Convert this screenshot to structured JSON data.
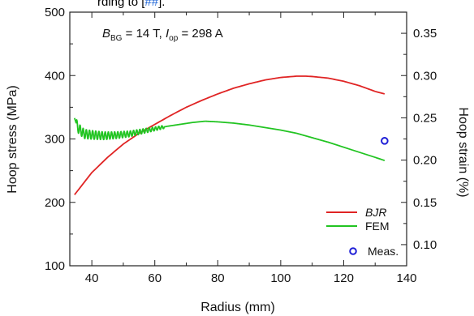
{
  "top_caption": {
    "prefix": "rding to [",
    "link": "##",
    "suffix": "]."
  },
  "chart_data": {
    "type": "line",
    "annotation": {
      "b_symbol": "B",
      "b_sub": "BG",
      "b_rest": " = 14 T, ",
      "i_symbol": "I",
      "i_sub": "op",
      "i_rest": " = 298 A"
    },
    "xlabel": "Radius (mm)",
    "ylabel": "Hoop stress (MPa)",
    "y2label": "Hoop strain (%)",
    "xlim": [
      33,
      140
    ],
    "ylim": [
      100,
      500
    ],
    "y2lim": [
      0.075,
      0.375
    ],
    "xticks": [
      40,
      60,
      80,
      100,
      120,
      140
    ],
    "yticks": [
      100,
      200,
      300,
      400,
      500
    ],
    "y2ticks": [
      0.1,
      0.15,
      0.2,
      0.25,
      0.3,
      0.35
    ],
    "grid": false,
    "legend_position": "bottom-right",
    "series": [
      {
        "name": "BJR",
        "color": "#e02424",
        "style": "line",
        "x": [
          34.5,
          40,
          45,
          50,
          55,
          60,
          65,
          70,
          75,
          80,
          85,
          90,
          95,
          100,
          105,
          108,
          110,
          115,
          120,
          125,
          130,
          133
        ],
        "y": [
          212,
          247,
          271,
          292,
          309,
          323,
          337,
          350,
          361,
          371,
          380,
          387,
          393,
          397,
          399,
          399,
          398.5,
          396,
          391,
          384,
          375,
          371
        ]
      },
      {
        "name": "FEM",
        "color": "#22c422",
        "style": "line",
        "x": [
          34.5,
          35.5,
          36.5,
          37.5,
          39,
          41,
          44,
          48,
          52,
          56,
          60,
          64,
          68,
          72,
          76,
          80,
          85,
          90,
          95,
          100,
          105,
          110,
          115,
          120,
          125,
          130,
          133
        ],
        "y": [
          333,
          318,
          313,
          308,
          307,
          306,
          305,
          306,
          308,
          312,
          316,
          320,
          323,
          326,
          328,
          327,
          325,
          322,
          318,
          314,
          309,
          302,
          295,
          287,
          279,
          271,
          266
        ],
        "oscillation": {
          "x_range": [
            35,
            63
          ],
          "amplitude": [
            16,
            5
          ],
          "period": 1.0
        }
      },
      {
        "name": "Meas.",
        "color": "#1f1fd6",
        "style": "marker",
        "x": [
          133
        ],
        "y": [
          297
        ]
      }
    ]
  }
}
